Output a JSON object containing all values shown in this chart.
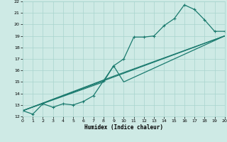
{
  "xlabel": "Humidex (Indice chaleur)",
  "xlim": [
    0,
    20
  ],
  "ylim": [
    12,
    22
  ],
  "xticks": [
    0,
    1,
    2,
    3,
    4,
    5,
    6,
    7,
    8,
    9,
    10,
    11,
    12,
    13,
    14,
    15,
    16,
    17,
    18,
    19,
    20
  ],
  "yticks": [
    12,
    13,
    14,
    15,
    16,
    17,
    18,
    19,
    20,
    21,
    22
  ],
  "bg_color": "#ceeae5",
  "grid_color": "#a8d4ce",
  "line_color": "#1a7a6e",
  "line1_x": [
    0,
    1,
    2,
    3,
    4,
    5,
    6,
    7,
    8,
    9,
    10,
    11,
    12,
    13,
    14,
    15,
    16,
    17,
    18,
    19,
    20
  ],
  "line1_y": [
    12.5,
    12.2,
    13.1,
    12.8,
    13.1,
    13.0,
    13.3,
    13.8,
    15.1,
    16.4,
    17.0,
    18.9,
    18.9,
    19.0,
    19.9,
    20.5,
    21.7,
    21.3,
    20.4,
    19.4,
    19.4
  ],
  "line2_x": [
    0,
    20
  ],
  "line2_y": [
    12.5,
    19.0
  ],
  "line3_x": [
    0,
    9,
    20
  ],
  "line3_y": [
    12.5,
    15.5,
    19.0
  ],
  "line4_x": [
    0,
    8,
    9,
    10,
    20
  ],
  "line4_y": [
    12.5,
    15.0,
    16.4,
    15.0,
    19.0
  ]
}
